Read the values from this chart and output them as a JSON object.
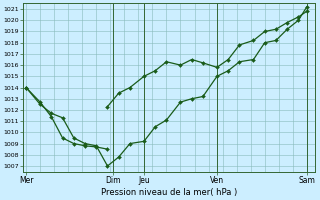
{
  "title": "",
  "xlabel": "Pression niveau de la mer( hPa )",
  "bg_color": "#cceeff",
  "plot_bg": "#cceeff",
  "line_color": "#1a5c1a",
  "grid_color": "#88bbbb",
  "border_color": "#336633",
  "ylim": [
    1006.5,
    1021.5
  ],
  "ytick_min": 1007,
  "ytick_max": 1021,
  "xtick_labels": [
    "Mer",
    "Dim",
    "Jeu",
    "Ven",
    "Sam"
  ],
  "xtick_positions": [
    0.0,
    0.31,
    0.42,
    0.68,
    1.0
  ],
  "series1_x": [
    0.0,
    0.05,
    0.09,
    0.13,
    0.17,
    0.21,
    0.25,
    0.29
  ],
  "series1_y": [
    1014.0,
    1012.7,
    1011.4,
    1009.5,
    1009.0,
    1008.8,
    1008.7,
    1008.5
  ],
  "series2_x": [
    0.0,
    0.05,
    0.09,
    0.13,
    0.17,
    0.21,
    0.25,
    0.29,
    0.33,
    0.37,
    0.42,
    0.46,
    0.5,
    0.55,
    0.59,
    0.63,
    0.68,
    0.72,
    0.76,
    0.81,
    0.85,
    0.89,
    0.93,
    0.97,
    1.0
  ],
  "series2_y": [
    1014.0,
    1012.5,
    1011.7,
    1011.3,
    1009.5,
    1009.0,
    1008.8,
    1007.0,
    1007.8,
    1009.0,
    1009.2,
    1010.5,
    1011.1,
    1012.7,
    1013.0,
    1013.2,
    1015.0,
    1015.5,
    1016.3,
    1016.5,
    1018.0,
    1018.2,
    1019.2,
    1020.0,
    1021.2
  ],
  "series3_x": [
    0.29,
    0.33,
    0.37,
    0.42,
    0.46,
    0.5,
    0.55,
    0.59,
    0.63,
    0.68,
    0.72,
    0.76,
    0.81,
    0.85,
    0.89,
    0.93,
    0.97,
    1.0
  ],
  "series3_y": [
    1012.3,
    1013.5,
    1014.0,
    1015.0,
    1015.5,
    1016.3,
    1016.0,
    1016.5,
    1016.2,
    1015.8,
    1016.5,
    1017.8,
    1018.2,
    1019.0,
    1019.2,
    1019.8,
    1020.3,
    1020.8
  ],
  "vline_positions": [
    0.31,
    0.42,
    0.68,
    1.0
  ]
}
